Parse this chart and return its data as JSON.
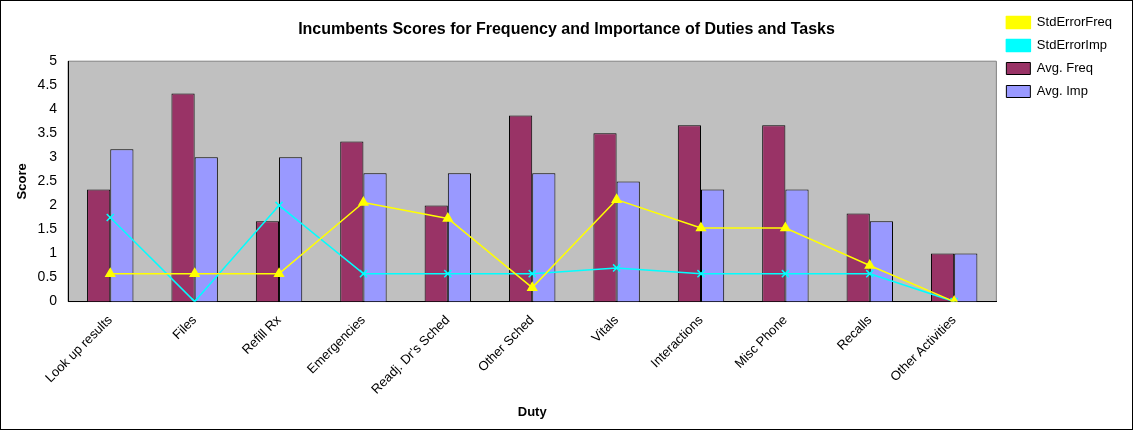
{
  "chart_data": {
    "type": "bar",
    "title": "Incumbents Scores for Frequency and Importance of Duties and Tasks",
    "xlabel": "Duty",
    "ylabel": "Score",
    "categories": [
      "Look up results",
      "Files",
      "Refill Rx",
      "Emergencies",
      "Readj. Dr's Sched",
      "Other Sched",
      "Vitals",
      "Interactions",
      "Misc Phone",
      "Recalls",
      "Other Activities"
    ],
    "series": [
      {
        "name": "Avg. Freq",
        "color": "#993366",
        "values": [
          2.33,
          4.33,
          1.67,
          3.33,
          2,
          3.87,
          3.5,
          3.67,
          3.67,
          1.83,
          1
        ]
      },
      {
        "name": "Avg. Imp",
        "color": "#9999ff",
        "values": [
          3.17,
          3,
          3,
          2.67,
          2.67,
          2.67,
          2.5,
          2.33,
          2.33,
          1.67,
          1
        ]
      },
      {
        "name": "StdErrorFreq",
        "type": "line",
        "marker": "triangle",
        "color": "#ffff00",
        "values": [
          0.58,
          0.58,
          0.58,
          2.06,
          1.73,
          0.29,
          2.12,
          1.53,
          1.53,
          0.75,
          0
        ]
      },
      {
        "name": "StdErrorImp",
        "type": "line",
        "marker": "cross",
        "color": "#00ffff",
        "values": [
          1.75,
          0,
          2,
          0.58,
          0.58,
          0.58,
          0.7,
          0.58,
          0.58,
          0.58,
          0
        ]
      }
    ],
    "ylim": [
      0,
      5
    ],
    "yticks": [
      0,
      0.5,
      1,
      1.5,
      2,
      2.5,
      3,
      3.5,
      4,
      4.5,
      5
    ],
    "grid": false,
    "legend": "right"
  }
}
